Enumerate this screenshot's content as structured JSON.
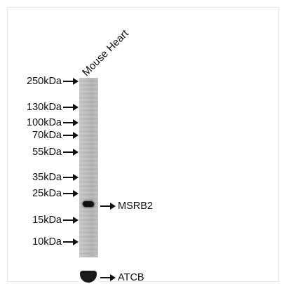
{
  "sample": {
    "label": "Mouse Heart"
  },
  "markers": [
    {
      "label": "250kDa"
    },
    {
      "label": "130kDa"
    },
    {
      "label": "100kDa"
    },
    {
      "label": "70kDa"
    },
    {
      "label": "55kDa"
    },
    {
      "label": "35kDa"
    },
    {
      "label": "25kDa"
    },
    {
      "label": "15kDa"
    },
    {
      "label": "10kDa"
    }
  ],
  "targets": {
    "primary": "MSRB2",
    "loading_control": "ATCB"
  },
  "colors": {
    "band": "#111111",
    "lane": "#bdbdbd"
  }
}
